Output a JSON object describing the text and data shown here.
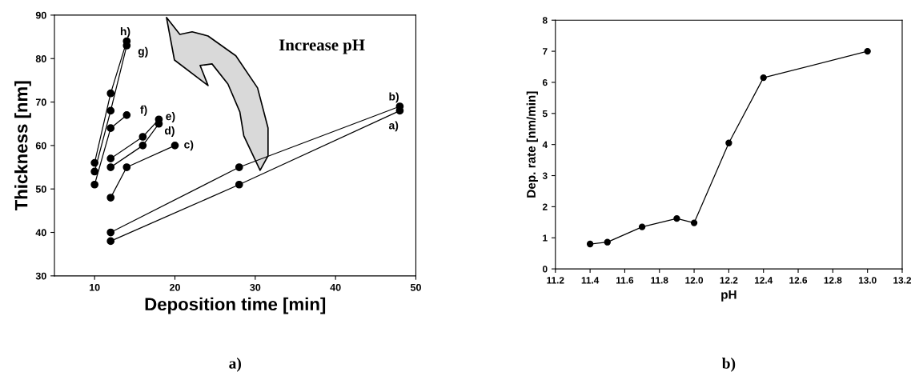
{
  "chart_data": [
    {
      "type": "line",
      "xlabel": "Deposition time [min]",
      "ylabel": "Thickness [nm]",
      "xlim": [
        5,
        50
      ],
      "xticks": [
        10,
        20,
        30,
        40,
        50
      ],
      "ylim": [
        30,
        90
      ],
      "yticks": [
        30,
        40,
        50,
        60,
        70,
        80,
        90
      ],
      "marker": "circle",
      "line_style": "solid",
      "grid": false,
      "legend": false,
      "annotations": [
        "Increase pH",
        "a)"
      ],
      "series": [
        {
          "name": "a)",
          "color": "#000000",
          "x": [
            12,
            28,
            48
          ],
          "values": [
            38,
            51,
            68
          ]
        },
        {
          "name": "b)",
          "color": "#000000",
          "x": [
            12,
            28,
            48
          ],
          "values": [
            40,
            55,
            69
          ]
        },
        {
          "name": "c)",
          "color": "#000000",
          "x": [
            12,
            14,
            20
          ],
          "values": [
            48,
            55,
            60
          ]
        },
        {
          "name": "d)",
          "color": "#000000",
          "x": [
            12,
            16,
            18
          ],
          "values": [
            55,
            60,
            65
          ]
        },
        {
          "name": "e)",
          "color": "#000000",
          "x": [
            12,
            16,
            18
          ],
          "values": [
            57,
            62,
            66
          ]
        },
        {
          "name": "f)",
          "color": "#000000",
          "x": [
            10,
            12,
            14
          ],
          "values": [
            51,
            64,
            67
          ]
        },
        {
          "name": "g)",
          "color": "#000000",
          "x": [
            10,
            12,
            14
          ],
          "values": [
            54,
            68,
            83
          ]
        },
        {
          "name": "h)",
          "color": "#000000",
          "x": [
            10,
            12,
            14
          ],
          "values": [
            56,
            72,
            84
          ]
        }
      ]
    },
    {
      "type": "line",
      "xlabel": "pH",
      "ylabel": "Dep. rate [nm/min]",
      "xlim": [
        11.2,
        13.2
      ],
      "xticks": [
        {
          "value": 11.2,
          "label": "11.2"
        },
        {
          "value": 11.4,
          "label": "11.4"
        },
        {
          "value": 11.6,
          "label": "11.6"
        },
        {
          "value": 11.8,
          "label": "11.8"
        },
        {
          "value": 12.0,
          "label": "12.0"
        },
        {
          "value": 12.2,
          "label": "12.2"
        },
        {
          "value": 12.4,
          "label": "12.4"
        },
        {
          "value": 12.6,
          "label": "12.6"
        },
        {
          "value": 12.8,
          "label": "12.8"
        },
        {
          "value": 13.0,
          "label": "13.0"
        },
        {
          "value": 13.2,
          "label": "13.2"
        }
      ],
      "ylim": [
        0,
        8
      ],
      "yticks": [
        0,
        1,
        2,
        3,
        4,
        5,
        6,
        7,
        8
      ],
      "marker": "circle",
      "line_style": "solid",
      "grid": false,
      "legend": false,
      "annotations": [
        "b)"
      ],
      "series": [
        {
          "color": "#000000",
          "x": [
            11.4,
            11.5,
            11.7,
            11.9,
            12.0,
            12.2,
            12.4,
            13.0
          ],
          "values": [
            0.8,
            0.86,
            1.35,
            1.62,
            1.48,
            4.05,
            6.15,
            7.0
          ]
        }
      ]
    }
  ]
}
